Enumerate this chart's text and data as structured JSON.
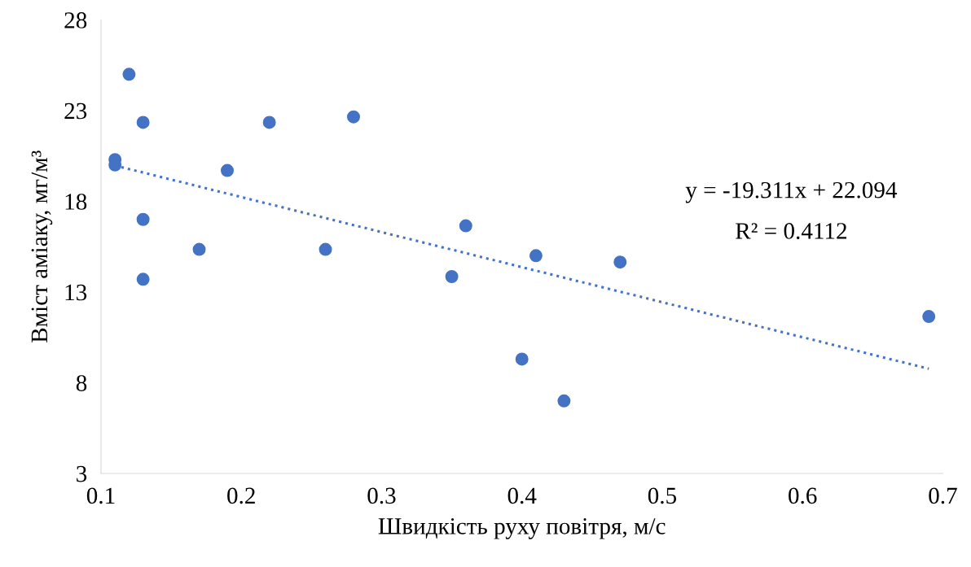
{
  "chart_data": {
    "type": "scatter",
    "xlabel": "Швидкість руху повітря, м/с",
    "ylabel": "Вміст аміаку, мг/м³",
    "xlim": [
      0.1,
      0.7
    ],
    "xticks": [
      0.1,
      0.2,
      0.3,
      0.4,
      0.5,
      0.6,
      0.7
    ],
    "ylim": [
      3,
      28
    ],
    "yticks": [
      3,
      8,
      13,
      18,
      23,
      28
    ],
    "grid": false,
    "legend": false,
    "marker": "circle",
    "series": [
      {
        "color": "#4472c4",
        "x": [
          0.11,
          0.11,
          0.12,
          0.13,
          0.13,
          0.13,
          0.17,
          0.19,
          0.22,
          0.26,
          0.28,
          0.35,
          0.36,
          0.4,
          0.41,
          0.43,
          0.47,
          0.69
        ],
        "values": [
          20.3,
          20.0,
          25.0,
          22.35,
          17.0,
          13.7,
          15.35,
          19.7,
          22.35,
          15.35,
          22.65,
          13.85,
          16.65,
          9.3,
          15.0,
          7.0,
          14.65,
          11.65
        ]
      },
      {
        "type": "line",
        "color": "#4472c4",
        "line_style": "dotted",
        "marker": "none",
        "x": [
          0.11,
          0.69
        ],
        "values": [
          19.97,
          8.77
        ]
      }
    ],
    "annotations": [
      "y = -19.311x + 22.094",
      "R² = 0.4112"
    ]
  }
}
